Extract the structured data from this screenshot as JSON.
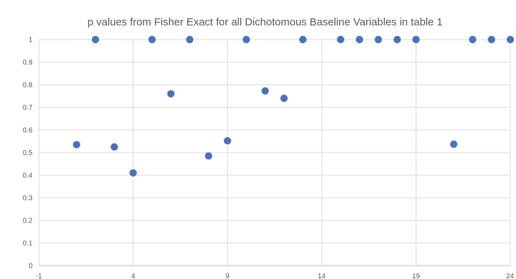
{
  "chart_data": {
    "type": "scatter",
    "title": "p values from Fisher Exact for all Dichotomous Baseline Variables in table 1",
    "xlabel": "",
    "ylabel": "",
    "xlim": [
      -1,
      24
    ],
    "ylim": [
      0,
      1
    ],
    "x_ticks": [
      -1,
      4,
      9,
      14,
      19,
      24
    ],
    "y_ticks": [
      0,
      0.1,
      0.2,
      0.3,
      0.4,
      0.5,
      0.6,
      0.7,
      0.8,
      0.9,
      1
    ],
    "y_tick_labels": [
      "0",
      "0.1",
      "0.2",
      "0.3",
      "0.4",
      "0.5",
      "0.6",
      "0.7",
      "0.8",
      "0.9",
      "1"
    ],
    "x_tick_labels": [
      "-1",
      "4",
      "9",
      "14",
      "19",
      "24"
    ],
    "grid": true,
    "legend": "none",
    "marker_color": "#4472C4",
    "series": [
      {
        "x": [
          1,
          2,
          3,
          4,
          5,
          6,
          7,
          8,
          9,
          10,
          11,
          12,
          13,
          15,
          16,
          17,
          18,
          19,
          21,
          22,
          23,
          24
        ],
        "y": [
          0.535,
          1,
          0.525,
          0.41,
          1,
          0.76,
          1,
          0.485,
          0.552,
          1,
          0.773,
          0.74,
          1,
          1,
          1,
          1,
          1,
          1,
          0.537,
          1,
          1,
          1
        ]
      }
    ]
  }
}
